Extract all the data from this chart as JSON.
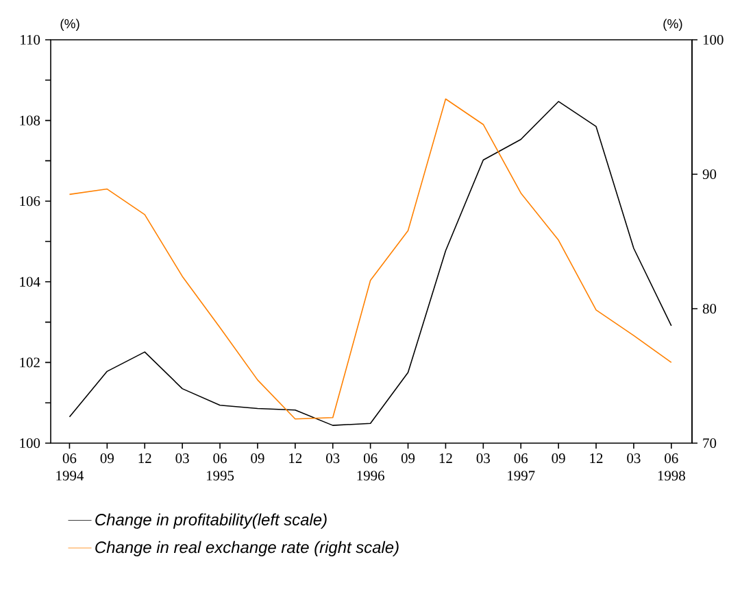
{
  "chart_data": {
    "type": "line",
    "categories": [
      "06",
      "09",
      "12",
      "03",
      "06",
      "09",
      "12",
      "03",
      "06",
      "09",
      "12",
      "03",
      "06",
      "09",
      "12",
      "03",
      "06"
    ],
    "series": [
      {
        "name": "Change in profitability(left scale)",
        "color": "#000000",
        "values": [
          100.65,
          101.78,
          102.26,
          101.35,
          100.94,
          100.86,
          100.82,
          100.44,
          100.49,
          101.75,
          104.77,
          107.02,
          107.53,
          108.47,
          107.85,
          104.83,
          102.91
        ]
      },
      {
        "name": "Change in real exchange rate (right scale)",
        "color": "#ff8000",
        "axis": "y2",
        "values": [
          88.5,
          88.9,
          87.0,
          82.4,
          78.6,
          74.7,
          71.8,
          71.9,
          82.1,
          85.8,
          95.6,
          93.7,
          88.6,
          85.1,
          79.9,
          78.0,
          76.0
        ]
      }
    ],
    "ylabel": "(%)",
    "y2label": "(%)",
    "ylim": [
      100,
      110
    ],
    "yticks": [
      100,
      {
        "value": 101,
        "label": null
      },
      102,
      {
        "value": 103,
        "label": null
      },
      104,
      {
        "value": 105,
        "label": null
      },
      106,
      {
        "value": 107,
        "label": null
      },
      108,
      {
        "value": 109,
        "label": null
      },
      110
    ],
    "y2lim": [
      70,
      100
    ],
    "y2ticks": [
      70,
      80,
      90,
      100
    ],
    "annotations": [
      "1994",
      "1995",
      "1996",
      "1997",
      "1998"
    ],
    "legend": "bottom",
    "marker": "none",
    "line_style": "solid",
    "grid": false
  }
}
